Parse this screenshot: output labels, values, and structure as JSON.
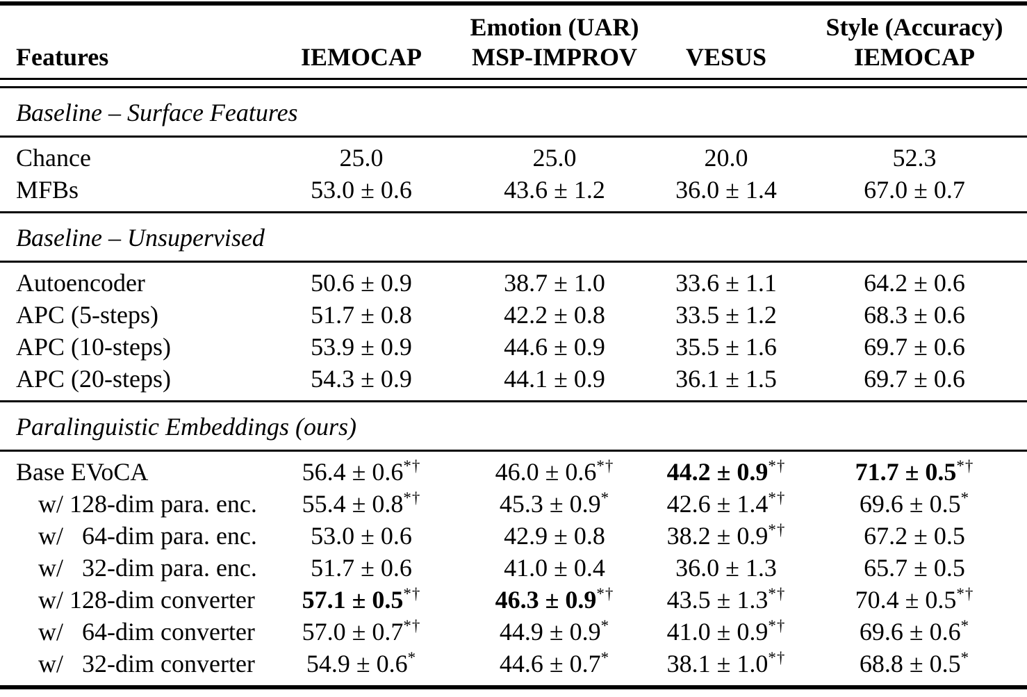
{
  "table": {
    "group_header": {
      "emotion": "Emotion (UAR)",
      "style": "Style (Accuracy)"
    },
    "columns": [
      "Features",
      "IEMOCAP",
      "MSP-IMPROV",
      "VESUS",
      "IEMOCAP"
    ],
    "sections": [
      {
        "title": "Baseline – Surface Features",
        "rows": [
          {
            "label": "Chance",
            "cells": [
              {
                "v": "25.0",
                "s": ""
              },
              {
                "v": "25.0",
                "s": ""
              },
              {
                "v": "20.0",
                "s": ""
              },
              {
                "v": "52.3",
                "s": ""
              }
            ]
          },
          {
            "label": "MFBs",
            "cells": [
              {
                "v": "53.0 ± 0.6",
                "s": ""
              },
              {
                "v": "43.6 ± 1.2",
                "s": ""
              },
              {
                "v": "36.0 ± 1.4",
                "s": ""
              },
              {
                "v": "67.0 ± 0.7",
                "s": ""
              }
            ]
          }
        ]
      },
      {
        "title": "Baseline – Unsupervised",
        "rows": [
          {
            "label": "Autoencoder",
            "cells": [
              {
                "v": "50.6 ± 0.9",
                "s": ""
              },
              {
                "v": "38.7 ± 1.0",
                "s": ""
              },
              {
                "v": "33.6 ± 1.1",
                "s": ""
              },
              {
                "v": "64.2 ± 0.6",
                "s": ""
              }
            ]
          },
          {
            "label": "APC (5-steps)",
            "cells": [
              {
                "v": "51.7 ± 0.8",
                "s": ""
              },
              {
                "v": "42.2 ± 0.8",
                "s": ""
              },
              {
                "v": "33.5 ± 1.2",
                "s": ""
              },
              {
                "v": "68.3 ± 0.6",
                "s": ""
              }
            ]
          },
          {
            "label": "APC (10-steps)",
            "cells": [
              {
                "v": "53.9 ± 0.9",
                "s": ""
              },
              {
                "v": "44.6 ± 0.9",
                "s": ""
              },
              {
                "v": "35.5 ± 1.6",
                "s": ""
              },
              {
                "v": "69.7 ± 0.6",
                "s": ""
              }
            ]
          },
          {
            "label": "APC (20-steps)",
            "cells": [
              {
                "v": "54.3 ± 0.9",
                "s": ""
              },
              {
                "v": "44.1 ± 0.9",
                "s": ""
              },
              {
                "v": "36.1 ± 1.5",
                "s": ""
              },
              {
                "v": "69.7 ± 0.6",
                "s": ""
              }
            ]
          }
        ]
      },
      {
        "title": "Paralinguistic Embeddings (ours)",
        "rows": [
          {
            "label": "Base EVoCA",
            "cells": [
              {
                "v": "56.4 ± 0.6",
                "s": "*†"
              },
              {
                "v": "46.0 ± 0.6",
                "s": "*†"
              },
              {
                "v": "44.2 ± 0.9",
                "s": "*†",
                "b": true
              },
              {
                "v": "71.7 ± 0.5",
                "s": "*†",
                "b": true
              }
            ]
          },
          {
            "label": "w/ 128-dim para. enc.",
            "indent": true,
            "cells": [
              {
                "v": "55.4 ± 0.8",
                "s": "*†"
              },
              {
                "v": "45.3 ± 0.9",
                "s": "*"
              },
              {
                "v": "42.6 ± 1.4",
                "s": "*†"
              },
              {
                "v": "69.6 ± 0.5",
                "s": "*"
              }
            ]
          },
          {
            "label": "w/   64-dim para. enc.",
            "indent": true,
            "cells": [
              {
                "v": "53.0 ± 0.6",
                "s": ""
              },
              {
                "v": "42.9 ± 0.8",
                "s": ""
              },
              {
                "v": "38.2 ± 0.9",
                "s": "*†"
              },
              {
                "v": "67.2 ± 0.5",
                "s": ""
              }
            ]
          },
          {
            "label": "w/   32-dim para. enc.",
            "indent": true,
            "cells": [
              {
                "v": "51.7 ± 0.6",
                "s": ""
              },
              {
                "v": "41.0 ± 0.4",
                "s": ""
              },
              {
                "v": "36.0 ± 1.3",
                "s": ""
              },
              {
                "v": "65.7 ± 0.5",
                "s": ""
              }
            ]
          },
          {
            "label": "w/ 128-dim converter",
            "indent": true,
            "cells": [
              {
                "v": "57.1 ± 0.5",
                "s": "*†",
                "b": true
              },
              {
                "v": "46.3 ± 0.9",
                "s": "*†",
                "b": true
              },
              {
                "v": "43.5 ± 1.3",
                "s": "*†"
              },
              {
                "v": "70.4 ± 0.5",
                "s": "*†"
              }
            ]
          },
          {
            "label": "w/   64-dim converter",
            "indent": true,
            "cells": [
              {
                "v": "57.0 ± 0.7",
                "s": "*†"
              },
              {
                "v": "44.9 ± 0.9",
                "s": "*"
              },
              {
                "v": "41.0 ± 0.9",
                "s": "*†"
              },
              {
                "v": "69.6 ± 0.6",
                "s": "*"
              }
            ]
          },
          {
            "label": "w/   32-dim converter",
            "indent": true,
            "cells": [
              {
                "v": "54.9 ± 0.6",
                "s": "*"
              },
              {
                "v": "44.6 ± 0.7",
                "s": "*"
              },
              {
                "v": "38.1 ± 1.0",
                "s": "*†"
              },
              {
                "v": "68.8 ± 0.5",
                "s": "*"
              }
            ]
          }
        ]
      }
    ],
    "colors": {
      "text": "#000000",
      "background": "#ffffff",
      "rule": "#000000"
    }
  }
}
